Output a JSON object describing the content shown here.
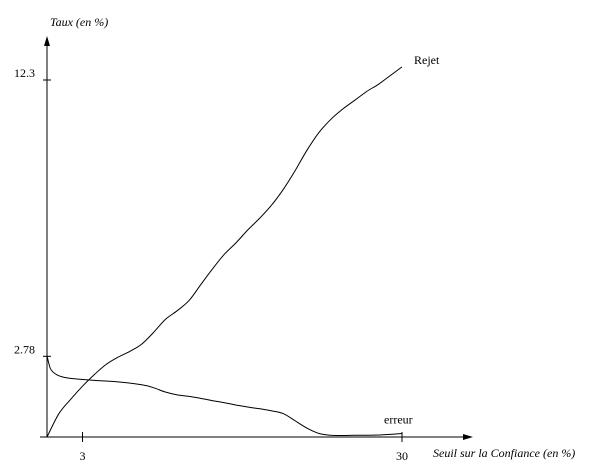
{
  "chart_data": {
    "type": "line",
    "xlabel": "Seuil sur la Confiance (en %)",
    "ylabel": "Taux (en %)",
    "x_ticks": [
      {
        "value": 3,
        "label": "3"
      },
      {
        "value": 30,
        "label": "30"
      }
    ],
    "y_ticks": [
      {
        "value": 2.78,
        "label": "2.78"
      },
      {
        "value": 12.3,
        "label": "12.3"
      }
    ],
    "xlim": [
      0,
      33
    ],
    "ylim": [
      0,
      14.5
    ],
    "series": [
      {
        "name": "Rejet",
        "x": [
          0,
          1,
          2,
          3,
          4,
          5,
          6,
          7,
          8,
          9,
          10,
          11,
          12,
          13,
          14,
          15,
          16,
          17,
          18,
          19,
          20,
          21,
          22,
          23,
          24,
          25,
          26,
          27,
          28,
          29,
          30
        ],
        "y": [
          0,
          0.8,
          1.3,
          1.75,
          2.15,
          2.5,
          2.75,
          2.95,
          3.2,
          3.6,
          4.05,
          4.35,
          4.7,
          5.25,
          5.8,
          6.3,
          6.7,
          7.15,
          7.55,
          8.0,
          8.55,
          9.2,
          9.9,
          10.5,
          10.95,
          11.3,
          11.6,
          11.9,
          12.15,
          12.45,
          12.75
        ]
      },
      {
        "name": "erreur",
        "x": [
          0,
          0.3,
          0.8,
          1.5,
          2.5,
          4,
          6,
          8,
          9,
          10,
          11,
          12,
          13,
          14,
          15,
          16,
          17,
          18,
          19,
          20,
          21,
          22,
          23,
          24,
          25,
          26,
          28,
          30
        ],
        "y": [
          2.8,
          2.35,
          2.15,
          2.05,
          2.0,
          1.95,
          1.9,
          1.8,
          1.7,
          1.55,
          1.45,
          1.4,
          1.33,
          1.25,
          1.18,
          1.1,
          1.03,
          0.97,
          0.9,
          0.8,
          0.55,
          0.3,
          0.12,
          0.06,
          0.05,
          0.06,
          0.07,
          0.12
        ]
      }
    ]
  }
}
